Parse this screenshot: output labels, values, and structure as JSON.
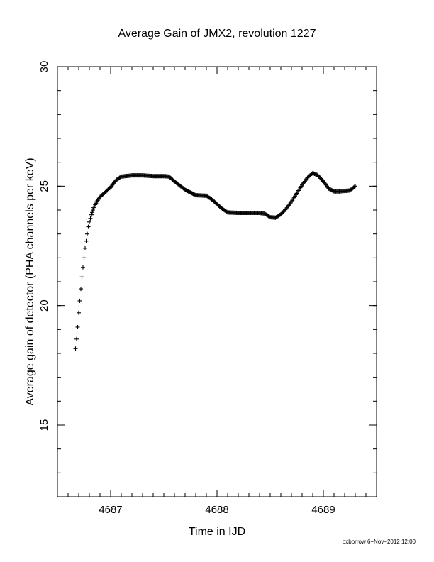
{
  "chart_data": {
    "type": "scatter",
    "title": "Average Gain of JMX2, revolution 1227",
    "xlabel": "Time in IJD",
    "ylabel": "Average gain of detector (PHA channels per keV)",
    "xlim": [
      4686.5,
      4689.5
    ],
    "ylim": [
      12,
      30
    ],
    "x_ticks": [
      4687,
      4688,
      4689
    ],
    "y_ticks": [
      15,
      20,
      25,
      30
    ],
    "x_minor_step": 0.1,
    "y_minor_step": 1,
    "grid": false,
    "marker": "plus",
    "color": "#000000",
    "x_tick_labels": [
      "4687",
      "4688",
      "4689"
    ],
    "y_tick_labels": [
      "15",
      "20",
      "25",
      "30"
    ],
    "series": [
      {
        "points": [
          [
            4686.67,
            18.2
          ],
          [
            4686.68,
            18.6
          ],
          [
            4686.69,
            19.1
          ],
          [
            4686.7,
            19.7
          ],
          [
            4686.71,
            20.2
          ],
          [
            4686.72,
            20.7
          ],
          [
            4686.73,
            21.2
          ],
          [
            4686.74,
            21.6
          ],
          [
            4686.75,
            22.0
          ],
          [
            4686.76,
            22.4
          ],
          [
            4686.77,
            22.7
          ],
          [
            4686.78,
            23.0
          ],
          [
            4686.79,
            23.3
          ],
          [
            4686.8,
            23.5
          ],
          [
            4686.82,
            23.8
          ],
          [
            4686.84,
            24.1
          ],
          [
            4686.87,
            24.35
          ],
          [
            4686.9,
            24.55
          ],
          [
            4686.95,
            24.75
          ],
          [
            4687.0,
            24.95
          ],
          [
            4687.05,
            25.25
          ],
          [
            4687.1,
            25.4
          ],
          [
            4687.2,
            25.45
          ],
          [
            4687.3,
            25.45
          ],
          [
            4687.4,
            25.42
          ],
          [
            4687.5,
            25.42
          ],
          [
            4687.55,
            25.4
          ],
          [
            4687.6,
            25.2
          ],
          [
            4687.7,
            24.85
          ],
          [
            4687.8,
            24.62
          ],
          [
            4687.9,
            24.6
          ],
          [
            4687.95,
            24.45
          ],
          [
            4688.0,
            24.25
          ],
          [
            4688.05,
            24.05
          ],
          [
            4688.1,
            23.9
          ],
          [
            4688.2,
            23.88
          ],
          [
            4688.3,
            23.88
          ],
          [
            4688.4,
            23.88
          ],
          [
            4688.45,
            23.85
          ],
          [
            4688.5,
            23.7
          ],
          [
            4688.55,
            23.68
          ],
          [
            4688.6,
            23.82
          ],
          [
            4688.65,
            24.05
          ],
          [
            4688.7,
            24.35
          ],
          [
            4688.75,
            24.7
          ],
          [
            4688.8,
            25.05
          ],
          [
            4688.85,
            25.35
          ],
          [
            4688.9,
            25.55
          ],
          [
            4688.95,
            25.45
          ],
          [
            4689.0,
            25.2
          ],
          [
            4689.05,
            24.9
          ],
          [
            4689.1,
            24.78
          ],
          [
            4689.15,
            24.78
          ],
          [
            4689.2,
            24.8
          ],
          [
            4689.25,
            24.82
          ],
          [
            4689.3,
            25.0
          ]
        ]
      }
    ]
  },
  "footer": {
    "credit": "oxborrow  6−Nov−2012 12:00"
  }
}
